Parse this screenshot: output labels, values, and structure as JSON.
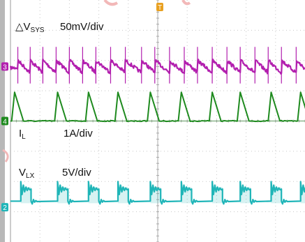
{
  "chart_data": {
    "type": "line",
    "title": "",
    "grid": true,
    "divisions": {
      "x": 10,
      "y": 8
    },
    "series": [
      {
        "name": "ΔVSYS",
        "channel": "3",
        "color": "#b21fae",
        "scale": "50mV/div",
        "waveform": "sawtooth ripple with switching spikes",
        "baseline_div": 2.2,
        "ripple_div": 0.4,
        "spike_div": 0.45,
        "events_x_div": [
          0.25,
          0.67,
          1.1,
          1.55,
          2.0,
          2.45,
          2.9,
          3.4,
          3.9,
          4.45,
          4.9,
          5.4,
          5.9,
          6.35,
          6.85,
          7.35,
          7.8,
          8.3,
          8.75,
          9.2,
          9.7
        ]
      },
      {
        "name": "IL",
        "channel": "4",
        "color": "#1e8a1e",
        "scale": "1A/div",
        "waveform": "triangular current pulses",
        "baseline_div": 4.0,
        "peak_div": 0.95,
        "rise_div": 0.1,
        "fall_div": 0.3,
        "events_x_div": [
          0.14,
          1.6,
          2.65,
          3.65,
          4.75,
          5.8,
          6.85,
          7.8,
          8.85,
          9.85
        ]
      },
      {
        "name": "VLX",
        "channel": "2",
        "color": "#1fb5b8",
        "scale": "5V/div",
        "waveform": "switch-node pulses with ringing",
        "high_div": 6.25,
        "low_div": 6.65,
        "events_x_div": [
          0.35,
          1.6,
          2.65,
          3.65,
          4.75,
          5.8,
          6.85,
          7.8,
          8.85,
          9.85
        ],
        "pulse_width_div": 0.35
      }
    ]
  },
  "labels": {
    "vsys_delta": "△V",
    "vsys_sub": "SYS",
    "vsys_scale": "50mV/div",
    "il_main": "I",
    "il_sub": "L",
    "il_scale": "1A/div",
    "vlx_main": "V",
    "vlx_sub": "LX",
    "vlx_scale": "5V/div"
  },
  "markers": {
    "trigger": "T",
    "ch3": "3",
    "ch4": "4",
    "ch2": "2"
  },
  "colors": {
    "background": "#ffffff",
    "grid": "#c8c8c8",
    "frame": "#9a9a9a",
    "trigger": "#e8a020",
    "annotation": "#f2b8b8"
  }
}
